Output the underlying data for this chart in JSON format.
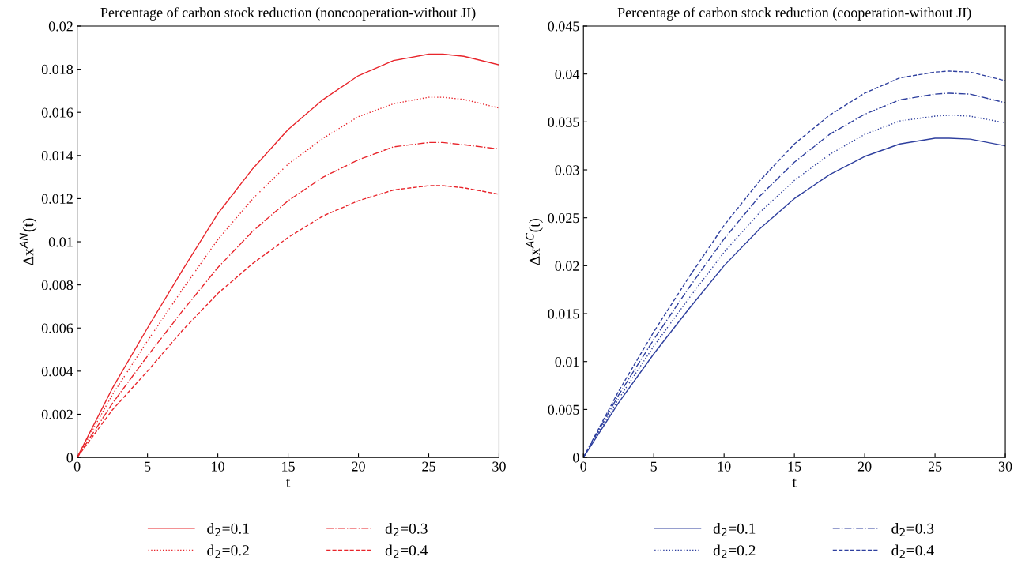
{
  "chart_data": [
    {
      "type": "line",
      "title": "Percentage of carbon stock reduction (noncooperation-without JI)",
      "xlabel": "t",
      "ylabel": "Δx$^{AN}$(t)",
      "x": [
        0,
        2.5,
        5,
        7.5,
        10,
        12.5,
        15,
        17.5,
        20,
        22.5,
        25,
        26,
        27.5,
        30
      ],
      "xlim": [
        0,
        30
      ],
      "xticks": [
        0,
        5,
        10,
        15,
        20,
        25,
        30
      ],
      "ylim": [
        0,
        0.02
      ],
      "yticks": [
        0,
        0.002,
        0.004,
        0.006,
        0.008,
        0.01,
        0.012,
        0.014,
        0.016,
        0.018,
        0.02
      ],
      "grid": false,
      "legend": "bottom",
      "series": [
        {
          "name": "d$_{2}$=0.1",
          "color": "#e8252b",
          "line_style": "solid",
          "values": [
            0,
            0.0032,
            0.006,
            0.0087,
            0.0113,
            0.0134,
            0.0152,
            0.0166,
            0.0177,
            0.0184,
            0.0187,
            0.0187,
            0.0186,
            0.0182
          ]
        },
        {
          "name": "d$_{2}$=0.2",
          "color": "#e8252b",
          "line_style": "dotted",
          "values": [
            0,
            0.0029,
            0.0054,
            0.0078,
            0.0101,
            0.012,
            0.0136,
            0.0148,
            0.0158,
            0.0164,
            0.0167,
            0.0167,
            0.0166,
            0.0162
          ]
        },
        {
          "name": "d$_{2}$=0.3",
          "color": "#e8252b",
          "line_style": "dashdot",
          "values": [
            0,
            0.0025,
            0.0047,
            0.0068,
            0.0088,
            0.0105,
            0.0119,
            0.013,
            0.0138,
            0.0144,
            0.0146,
            0.0146,
            0.0145,
            0.0143
          ]
        },
        {
          "name": "d$_{2}$=0.4",
          "color": "#e8252b",
          "line_style": "dashed",
          "values": [
            0,
            0.0022,
            0.004,
            0.0059,
            0.0076,
            0.009,
            0.0102,
            0.0112,
            0.0119,
            0.0124,
            0.0126,
            0.0126,
            0.0125,
            0.0122
          ]
        }
      ]
    },
    {
      "type": "line",
      "title": "Percentage of carbon stock reduction (cooperation-without JI)",
      "xlabel": "t",
      "ylabel": "Δx$^{AC}$(t)",
      "x": [
        0,
        2.5,
        5,
        7.5,
        10,
        12.5,
        15,
        17.5,
        20,
        22.5,
        25,
        26,
        27.5,
        30
      ],
      "xlim": [
        0,
        30
      ],
      "xticks": [
        0,
        5,
        10,
        15,
        20,
        25,
        30
      ],
      "ylim": [
        0,
        0.045
      ],
      "yticks": [
        0,
        0.005,
        0.01,
        0.015,
        0.02,
        0.025,
        0.03,
        0.035,
        0.04,
        0.045
      ],
      "grid": false,
      "legend": "bottom",
      "series": [
        {
          "name": "d$_{2}$=0.1",
          "color": "#2e3f9e",
          "line_style": "solid",
          "values": [
            0,
            0.0057,
            0.0108,
            0.0155,
            0.02,
            0.0238,
            0.027,
            0.0295,
            0.0314,
            0.0327,
            0.0333,
            0.0333,
            0.0332,
            0.0325
          ]
        },
        {
          "name": "d$_{2}$=0.2",
          "color": "#2e3f9e",
          "line_style": "dotted",
          "values": [
            0,
            0.0061,
            0.0116,
            0.0166,
            0.0214,
            0.0255,
            0.0289,
            0.0316,
            0.0337,
            0.0351,
            0.0356,
            0.0357,
            0.0356,
            0.0349
          ]
        },
        {
          "name": "d$_{2}$=0.3",
          "color": "#2e3f9e",
          "line_style": "dashdot",
          "values": [
            0,
            0.0065,
            0.0123,
            0.0177,
            0.0228,
            0.0272,
            0.0308,
            0.0337,
            0.0358,
            0.0373,
            0.0379,
            0.038,
            0.0379,
            0.037
          ]
        },
        {
          "name": "d$_{2}$=0.4",
          "color": "#2e3f9e",
          "line_style": "dashed",
          "values": [
            0,
            0.0069,
            0.0131,
            0.0188,
            0.0242,
            0.0288,
            0.0327,
            0.0357,
            0.038,
            0.0396,
            0.0402,
            0.0403,
            0.0402,
            0.0393
          ]
        }
      ]
    }
  ]
}
